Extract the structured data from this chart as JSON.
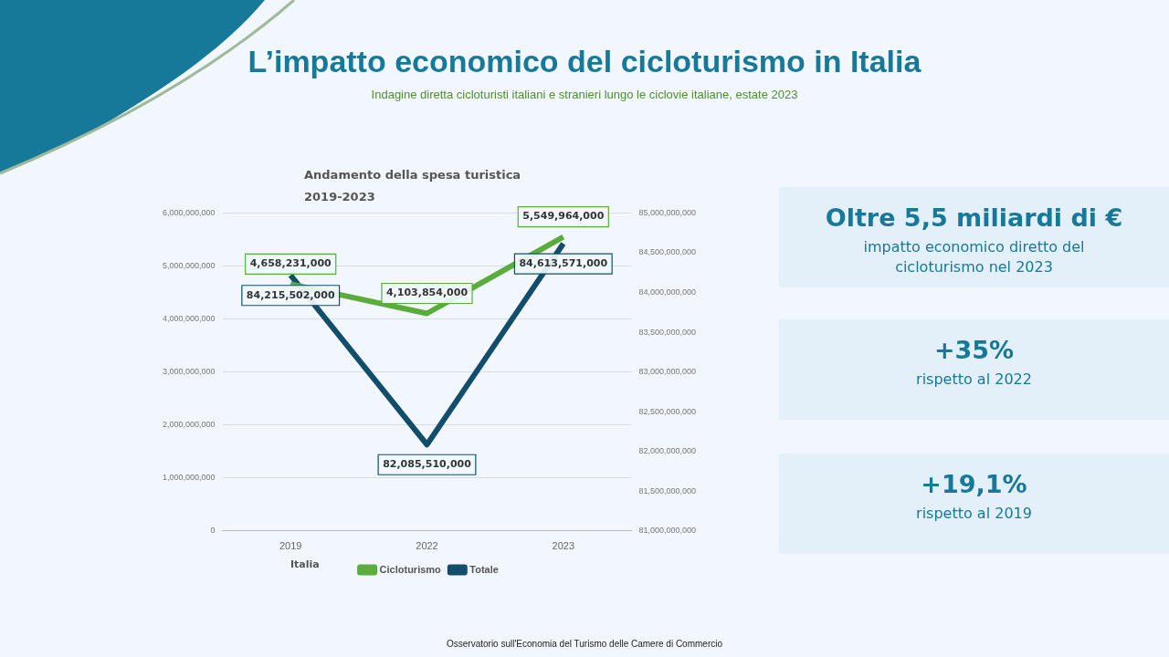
{
  "chart_data": [
    {
      "type": "line",
      "title": "L’impatto economico del cicloturismo in Italia",
      "subtitle": "Indagine diretta cicloturisti italiani e stranieri lungo le ciclovie italiane, estate 2023",
      "categories": [
        "2019",
        "2022",
        "2023"
      ],
      "series": [
        {
          "name": "Cicloturismo",
          "color": "#5aad3c",
          "values": [
            4658231000,
            4103854000,
            5549964000
          ],
          "value_labels": [
            "4,658,231,000",
            "4,103,854,000",
            "5,549,964,000"
          ]
        },
        {
          "name": "Totale",
          "color": "#124e6b",
          "values": [
            84215502000,
            82085510000,
            84613571000
          ],
          "value_labels": [
            "84,215,502,000",
            "82,085,510,000",
            "84,613,571,000"
          ],
          "axis": "y2"
        }
      ],
      "ylim": [
        0,
        6000000000
      ],
      "yticks": [
        0,
        {
          "value": 1000000000,
          "label": "1,000,000,000"
        },
        {
          "value": 2000000000,
          "label": "2,000,000,000"
        },
        {
          "value": 3000000000,
          "label": "3,000,000,000"
        },
        {
          "value": 4000000000,
          "label": "4,000,000,000"
        },
        {
          "value": 5000000000,
          "label": "5,000,000,000"
        },
        {
          "value": 6000000000,
          "label": "6,000,000,000"
        }
      ],
      "y2lim": [
        81000000000,
        85000000000
      ],
      "y2ticks": [
        {
          "value": 81000000000,
          "label": "81,000,000,000"
        },
        {
          "value": 81500000000,
          "label": "81,500,000,000"
        },
        {
          "value": 82000000000,
          "label": "82,000,000,000"
        },
        {
          "value": 82500000000,
          "label": "82,500,000,000"
        },
        {
          "value": 83000000000,
          "label": "83,000,000,000"
        },
        {
          "value": 83500000000,
          "label": "83,500,000,000"
        },
        {
          "value": 84000000000,
          "label": "84,000,000,000"
        },
        {
          "value": 84500000000,
          "label": "84,500,000,000"
        },
        {
          "value": 85000000000,
          "label": "85,000,000,000"
        }
      ],
      "grid": "y",
      "legend": "bottom",
      "marker": "none",
      "line_style": "solid",
      "annotations": [
        "Andamento della spesa turistica",
        "2019-2023",
        "Italia",
        "Osservatorio sull'Economia del Turismo delle Camere di Commercio"
      ]
    },
    {
      "type": "other",
      "title": "Oltre 5,5 miliardi di €",
      "subtitle": "impatto economico diretto del cicloturismo nel 2023"
    },
    {
      "type": "other",
      "title": "+35%",
      "subtitle": "rispetto al 2022"
    },
    {
      "type": "other",
      "title": "+19,1%",
      "subtitle": "rispetto al 2019"
    }
  ]
}
